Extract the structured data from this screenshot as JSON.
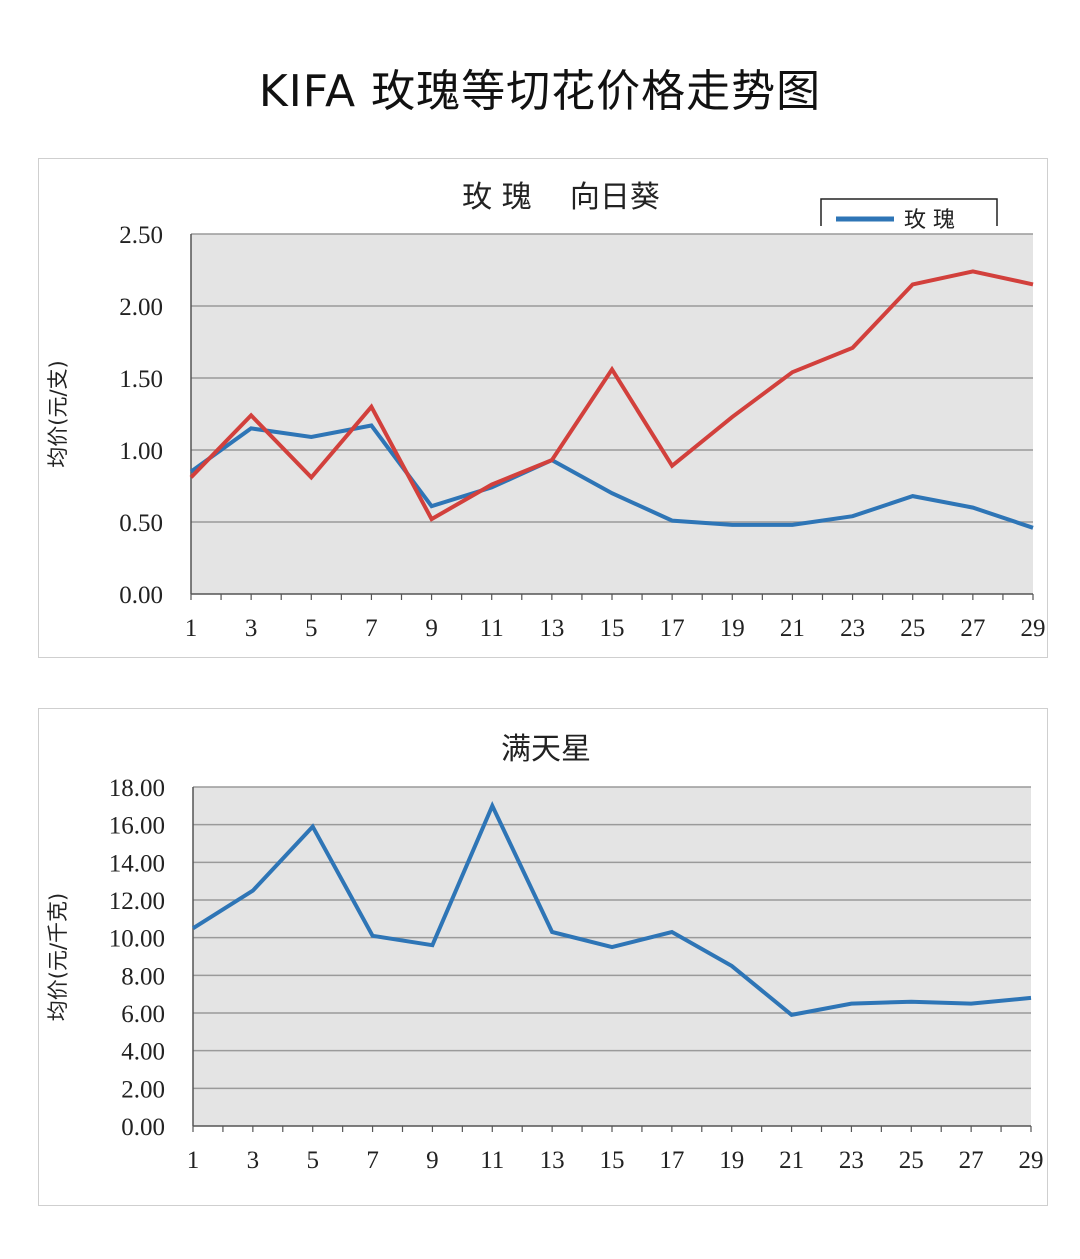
{
  "page_title": "KIFA 玫瑰等切花价格走势图",
  "colors": {
    "blue": "#2E75B6",
    "red": "#D2403C",
    "plot_bg": "#E4E4E4",
    "grid": "#9A9A9A"
  },
  "chart_data": [
    {
      "type": "line",
      "title": "玫 瑰    向日葵",
      "ylabel": "均价(元/支)",
      "xlabel": "",
      "x": [
        1,
        2,
        3,
        4,
        5,
        6,
        7,
        8,
        9,
        10,
        11,
        12,
        13,
        14,
        15,
        16,
        17,
        18,
        19,
        20,
        21,
        22,
        23,
        24,
        25,
        26,
        27,
        28,
        29
      ],
      "x_ticks": [
        "1",
        "3",
        "5",
        "7",
        "9",
        "11",
        "13",
        "15",
        "17",
        "19",
        "21",
        "23",
        "25",
        "27",
        "29"
      ],
      "y_ticks": [
        "0.00",
        "0.50",
        "1.00",
        "1.50",
        "2.00",
        "2.50"
      ],
      "ylim": [
        0,
        2.5
      ],
      "grid": true,
      "legend": {
        "position": "top-right",
        "entries": [
          "玫 瑰"
        ]
      },
      "series": [
        {
          "name": "玫 瑰",
          "color": "#2E75B6",
          "points": [
            [
              1,
              0.85
            ],
            [
              3,
              1.15
            ],
            [
              5,
              1.09
            ],
            [
              7,
              1.17
            ],
            [
              9,
              0.61
            ],
            [
              11,
              0.74
            ],
            [
              13,
              0.93
            ],
            [
              15,
              0.7
            ],
            [
              17,
              0.51
            ],
            [
              19,
              0.48
            ],
            [
              21,
              0.48
            ],
            [
              23,
              0.54
            ],
            [
              25,
              0.68
            ],
            [
              27,
              0.6
            ],
            [
              29,
              0.46
            ]
          ]
        },
        {
          "name": "向日葵",
          "color": "#D2403C",
          "points": [
            [
              1,
              0.81
            ],
            [
              3,
              1.24
            ],
            [
              5,
              0.81
            ],
            [
              7,
              1.3
            ],
            [
              9,
              0.52
            ],
            [
              11,
              0.76
            ],
            [
              13,
              0.93
            ],
            [
              15,
              1.56
            ],
            [
              17,
              0.89
            ],
            [
              19,
              1.23
            ],
            [
              21,
              1.54
            ],
            [
              23,
              1.71
            ],
            [
              25,
              2.15
            ],
            [
              27,
              2.24
            ],
            [
              29,
              2.15
            ]
          ]
        }
      ]
    },
    {
      "type": "line",
      "title": "满天星",
      "ylabel": "均价(元/千克)",
      "xlabel": "",
      "x": [
        1,
        2,
        3,
        4,
        5,
        6,
        7,
        8,
        9,
        10,
        11,
        12,
        13,
        14,
        15,
        16,
        17,
        18,
        19,
        20,
        21,
        22,
        23,
        24,
        25,
        26,
        27,
        28,
        29
      ],
      "x_ticks": [
        "1",
        "3",
        "5",
        "7",
        "9",
        "11",
        "13",
        "15",
        "17",
        "19",
        "21",
        "23",
        "25",
        "27",
        "29"
      ],
      "y_ticks": [
        "0.00",
        "2.00",
        "4.00",
        "6.00",
        "8.00",
        "10.00",
        "12.00",
        "14.00",
        "16.00",
        "18.00"
      ],
      "ylim": [
        0,
        18
      ],
      "grid": true,
      "series": [
        {
          "name": "满天星",
          "color": "#2E75B6",
          "points": [
            [
              1,
              10.5
            ],
            [
              3,
              12.5
            ],
            [
              5,
              15.9
            ],
            [
              7,
              10.1
            ],
            [
              9,
              9.6
            ],
            [
              11,
              17.0
            ],
            [
              13,
              10.3
            ],
            [
              15,
              9.5
            ],
            [
              17,
              10.3
            ],
            [
              19,
              8.5
            ],
            [
              21,
              5.9
            ],
            [
              23,
              6.5
            ],
            [
              25,
              6.6
            ],
            [
              27,
              6.5
            ],
            [
              29,
              6.8
            ]
          ]
        }
      ]
    }
  ]
}
